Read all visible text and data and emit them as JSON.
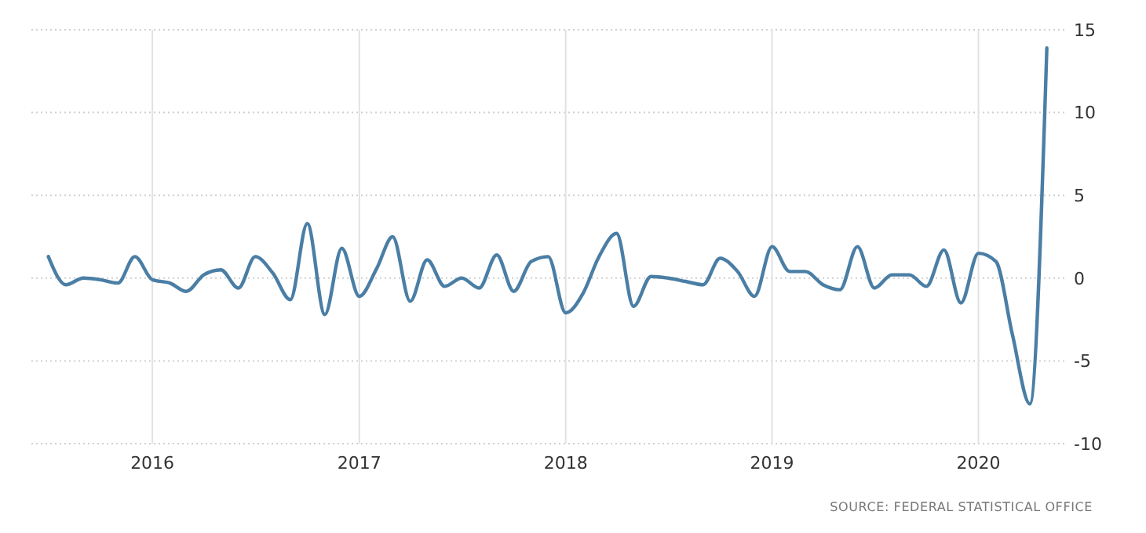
{
  "chart_data": {
    "type": "line",
    "x": [
      "2015-07",
      "2015-08",
      "2015-09",
      "2015-10",
      "2015-11",
      "2015-12",
      "2016-01",
      "2016-02",
      "2016-03",
      "2016-04",
      "2016-05",
      "2016-06",
      "2016-07",
      "2016-08",
      "2016-09",
      "2016-10",
      "2016-11",
      "2016-12",
      "2017-01",
      "2017-02",
      "2017-03",
      "2017-04",
      "2017-05",
      "2017-06",
      "2017-07",
      "2017-08",
      "2017-09",
      "2017-10",
      "2017-11",
      "2017-12",
      "2018-01",
      "2018-02",
      "2018-03",
      "2018-04",
      "2018-05",
      "2018-06",
      "2018-07",
      "2018-08",
      "2018-09",
      "2018-10",
      "2018-11",
      "2018-12",
      "2019-01",
      "2019-02",
      "2019-03",
      "2019-04",
      "2019-05",
      "2019-06",
      "2019-07",
      "2019-08",
      "2019-09",
      "2019-10",
      "2019-11",
      "2019-12",
      "2020-01",
      "2020-02",
      "2020-03",
      "2020-04",
      "2020-05"
    ],
    "series": [
      {
        "color": "#4a7ea5",
        "values": [
          1.3,
          -0.4,
          0.0,
          -0.1,
          -0.3,
          1.3,
          -0.1,
          -0.3,
          -0.8,
          0.2,
          0.5,
          -0.6,
          1.3,
          0.3,
          -1.3,
          3.3,
          -2.2,
          1.8,
          -1.1,
          0.6,
          2.5,
          -1.4,
          1.1,
          -0.5,
          0.0,
          -0.6,
          1.4,
          -0.8,
          1.0,
          1.3,
          -2.1,
          -0.9,
          1.3,
          2.7,
          -1.7,
          0.1,
          0.0,
          -0.2,
          -0.4,
          1.2,
          0.4,
          -1.1,
          1.9,
          0.4,
          0.4,
          -0.4,
          -0.7,
          1.9,
          -0.6,
          0.2,
          0.2,
          -0.5,
          1.7,
          -1.5,
          1.5,
          1.0,
          -3.4,
          -7.6,
          13.9
        ]
      }
    ],
    "xlim": [
      "2015-06-01",
      "2020-06-01"
    ],
    "xticks": [
      {
        "value": "2016-01-01",
        "label": "2016"
      },
      {
        "value": "2017-01-01",
        "label": "2017"
      },
      {
        "value": "2018-01-01",
        "label": "2018"
      },
      {
        "value": "2019-01-01",
        "label": "2019"
      },
      {
        "value": "2020-01-01",
        "label": "2020"
      }
    ],
    "ylim": [
      -10,
      15
    ],
    "yticks": [
      -10,
      -5,
      0,
      5,
      10,
      15
    ],
    "grid": true,
    "annotations": [
      "SOURCE: FEDERAL STATISTICAL OFFICE"
    ]
  }
}
